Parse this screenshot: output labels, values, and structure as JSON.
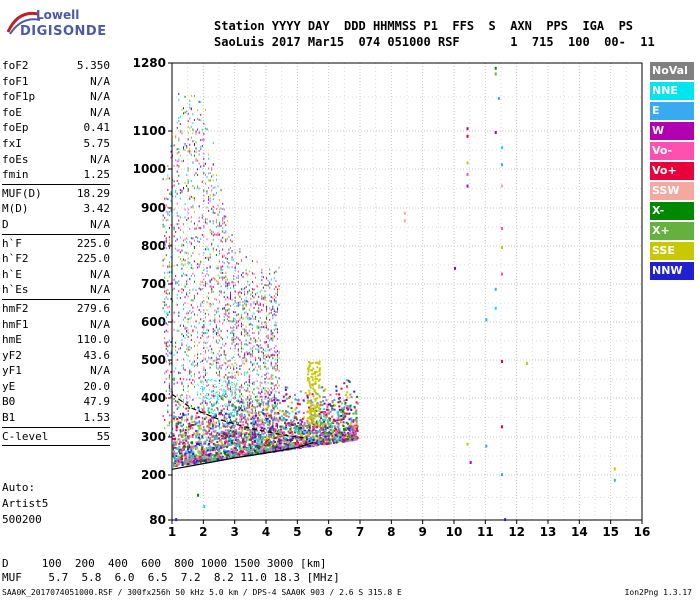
{
  "logo": {
    "line1": "Lowell",
    "line2": "DIGISONDE"
  },
  "header": {
    "line1": "Station YYYY DAY  DDD HHMMSS P1  FFS  S  AXN  PPS  IGA  PS",
    "line2": "SaoLuis 2017 Mar15  074 051000 RSF       1  715  100  00-  11"
  },
  "params_a": [
    {
      "k": "foF2",
      "v": "5.350"
    },
    {
      "k": "foF1",
      "v": "N/A"
    },
    {
      "k": "foF1p",
      "v": "N/A"
    },
    {
      "k": "foE",
      "v": "N/A"
    },
    {
      "k": "foEp",
      "v": "0.41"
    },
    {
      "k": "fxI",
      "v": "5.75"
    },
    {
      "k": "foEs",
      "v": "N/A"
    },
    {
      "k": "fmin",
      "v": "1.25"
    }
  ],
  "params_b": [
    {
      "k": "MUF(D)",
      "v": "18.29"
    },
    {
      "k": "M(D)",
      "v": "3.42"
    },
    {
      "k": "D",
      "v": "N/A"
    }
  ],
  "params_c": [
    {
      "k": "h`F",
      "v": "225.0"
    },
    {
      "k": "h`F2",
      "v": "225.0"
    },
    {
      "k": "h`E",
      "v": "N/A"
    },
    {
      "k": "h`Es",
      "v": "N/A"
    }
  ],
  "params_d": [
    {
      "k": "hmF2",
      "v": "279.6"
    },
    {
      "k": "hmF1",
      "v": "N/A"
    },
    {
      "k": "hmE",
      "v": "110.0"
    },
    {
      "k": "yF2",
      "v": "43.6"
    },
    {
      "k": "yF1",
      "v": "N/A"
    },
    {
      "k": "yE",
      "v": "20.0"
    },
    {
      "k": "B0",
      "v": "47.9"
    },
    {
      "k": "B1",
      "v": "1.53"
    }
  ],
  "params_e": [
    {
      "k": "C-level",
      "v": "55"
    }
  ],
  "auto": {
    "line1": "Auto:",
    "line2": "Artist5",
    "line3": "500200"
  },
  "bottom": {
    "line1": "D     100  200  400  600  800 1000 1500 3000 [km]",
    "line2": "MUF    5.7  5.8  6.0  6.5  7.2  8.2 11.0 18.3 [MHz]"
  },
  "footer": {
    "left": "SAA0K_2017074051000.RSF / 300fx256h 50 kHz 5.0 km / DPS-4 SAA0K 903 / 2.6 S 315.8 E",
    "right": "Ion2Png 1.3.17"
  },
  "legend": [
    {
      "label": "NoVal",
      "color": "#808080"
    },
    {
      "label": "NNE",
      "color": "#00e5ee"
    },
    {
      "label": "E",
      "color": "#3aaaf0"
    },
    {
      "label": "W",
      "color": "#b000b0"
    },
    {
      "label": "Vo-",
      "color": "#ff50b0"
    },
    {
      "label": "Vo+",
      "color": "#e8003a"
    },
    {
      "label": "SSW",
      "color": "#f4a8a0"
    },
    {
      "label": "X-",
      "color": "#008800"
    },
    {
      "label": "X+",
      "color": "#66b040"
    },
    {
      "label": "SSE",
      "color": "#c8c800"
    },
    {
      "label": "NNW",
      "color": "#2020d0"
    }
  ],
  "chart_data": {
    "type": "scatter",
    "x_ticks": [
      "1",
      "2",
      "3",
      "4",
      "5",
      "6",
      "7",
      "8",
      "9",
      "10",
      "11",
      "12",
      "13",
      "14",
      "15",
      "16"
    ],
    "y_ticks": [
      "80",
      "200",
      "300",
      "400",
      "500",
      "600",
      "700",
      "800",
      "900",
      "1000",
      "1100",
      "1280"
    ],
    "xlim": [
      1,
      16
    ],
    "ylim": [
      80,
      1280
    ],
    "grid": true,
    "trace_o": [
      [
        1.0,
        215
      ],
      [
        2.0,
        230
      ],
      [
        3.0,
        245
      ],
      [
        4.0,
        258
      ],
      [
        5.0,
        272
      ],
      [
        5.5,
        285
      ]
    ],
    "trace_o_upper": [
      [
        1.0,
        410
      ],
      [
        1.6,
        375
      ],
      [
        2.5,
        345
      ],
      [
        3.5,
        322
      ],
      [
        4.5,
        306
      ],
      [
        5.2,
        298
      ]
    ]
  }
}
